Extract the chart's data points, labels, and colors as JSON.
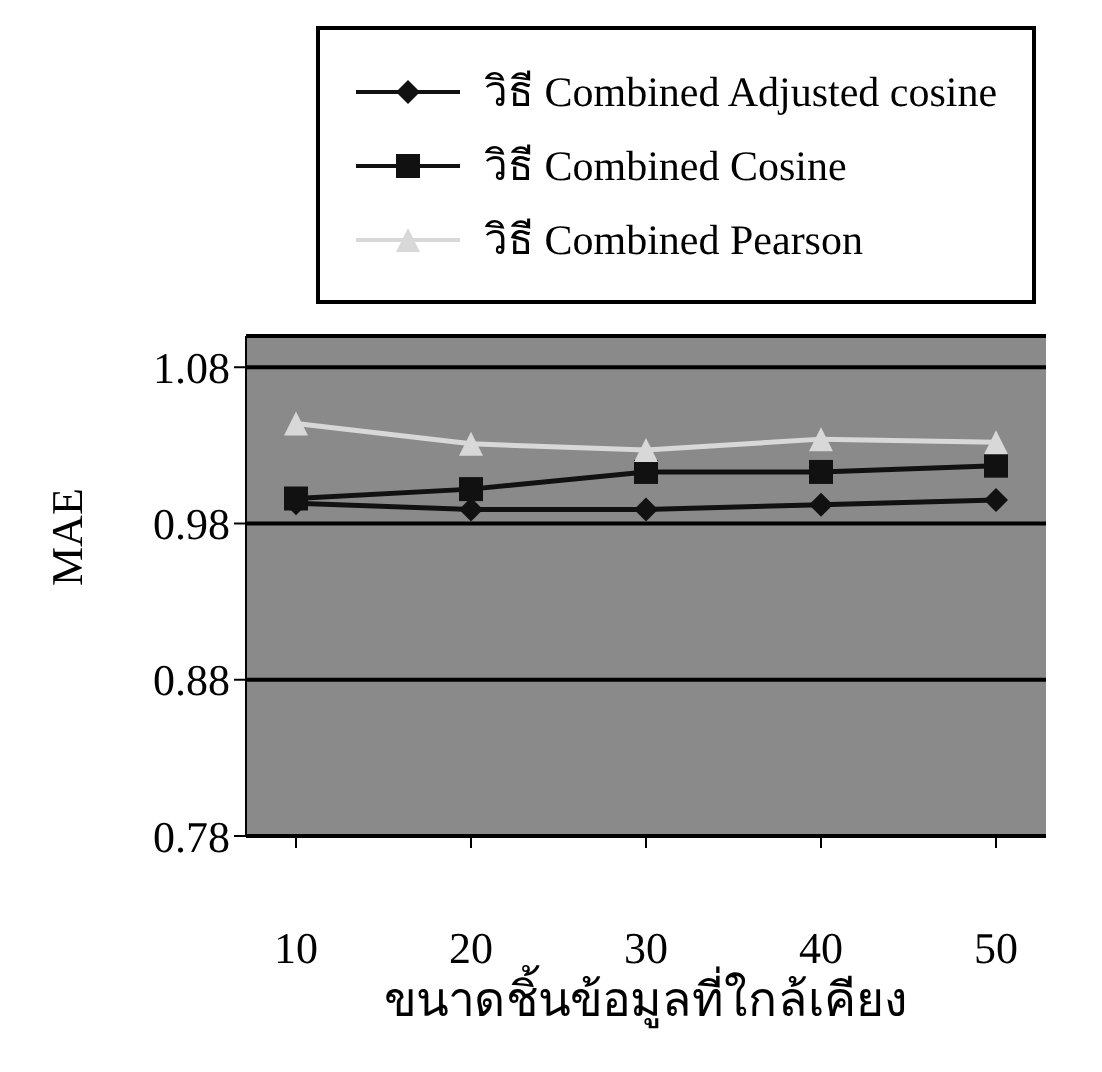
{
  "chart_data": {
    "type": "line",
    "xlabel": "ขนาดชิ้นข้อมูลที่ใกล้เคียง",
    "ylabel": "MAE",
    "categories": [
      "10",
      "20",
      "30",
      "40",
      "50"
    ],
    "series": [
      {
        "name": "วิธี Combined Adjusted cosine",
        "color": "#111111",
        "marker": "diamond",
        "values": [
          0.993,
          0.989,
          0.989,
          0.992,
          0.995
        ]
      },
      {
        "name": "วิธี Combined Cosine",
        "color": "#111111",
        "marker": "square",
        "values": [
          0.996,
          1.002,
          1.013,
          1.013,
          1.017
        ]
      },
      {
        "name": "วิธี Combined Pearson",
        "color": "#d8d8d8",
        "marker": "triangle",
        "values": [
          1.044,
          1.031,
          1.027,
          1.034,
          1.032
        ]
      }
    ],
    "ylim": [
      0.78,
      1.1
    ],
    "yticks": [
      0.78,
      0.88,
      0.98,
      1.08
    ],
    "grid": "y",
    "legend": "top"
  }
}
